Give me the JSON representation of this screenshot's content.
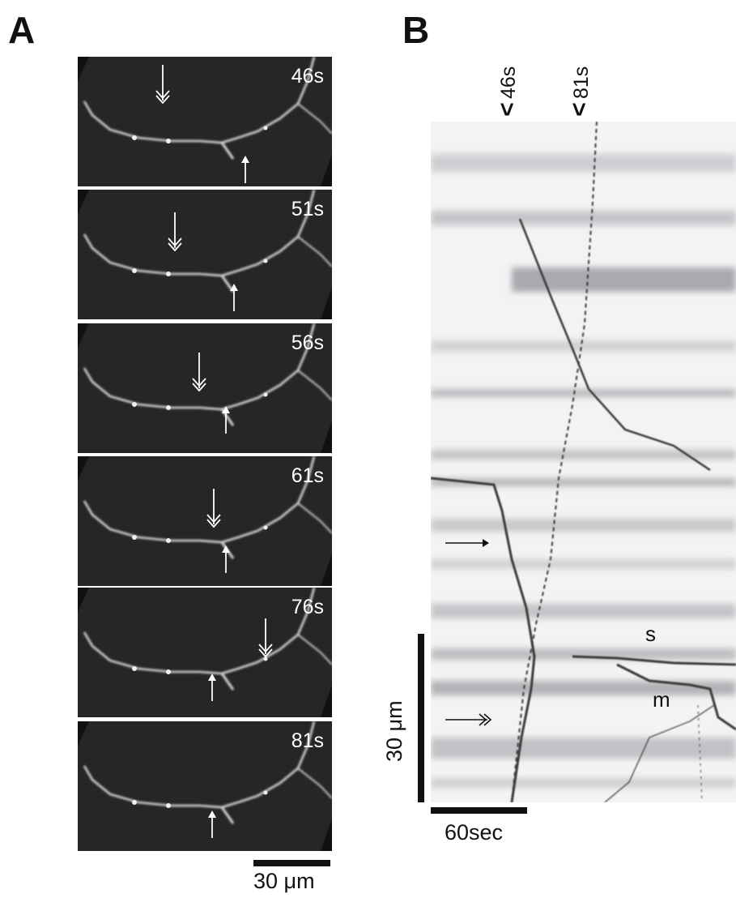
{
  "panels": {
    "a": {
      "letter": "A"
    },
    "b": {
      "letter": "B"
    }
  },
  "frames": [
    {
      "time": "46s"
    },
    {
      "time": "51s"
    },
    {
      "time": "56s"
    },
    {
      "time": "61s"
    },
    {
      "time": "76s"
    },
    {
      "time": "81s"
    }
  ],
  "panel_a_scale": {
    "label": "30 μm"
  },
  "kymograph": {
    "top_labels": [
      "46s",
      "81s"
    ],
    "caret": "<",
    "labels": {
      "s": "s",
      "m": "m"
    },
    "vertical_scale": "30 μm",
    "horizontal_scale": "60sec"
  },
  "colors": {
    "frame_bg": "#262626",
    "neurite": "#d8d8d8",
    "kymo_bg": "#f3f3f4",
    "track": "#3a3a3a"
  }
}
